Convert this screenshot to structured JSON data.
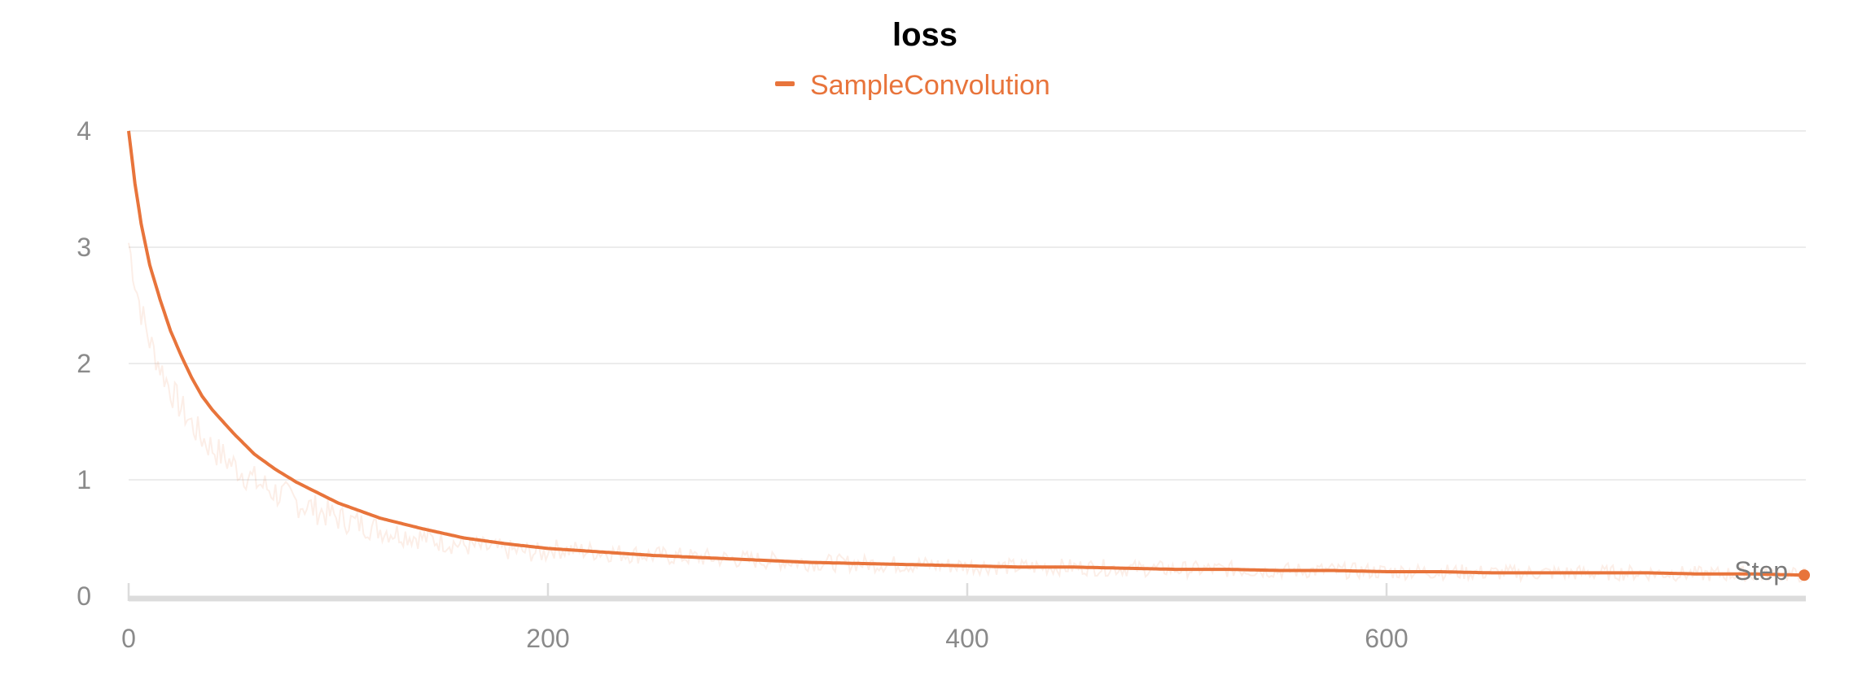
{
  "chart_data": {
    "type": "line",
    "title": "loss",
    "xlabel": "Step",
    "ylabel": "",
    "xlim": [
      0,
      800
    ],
    "ylim": [
      0,
      4
    ],
    "x_ticks": [
      0,
      200,
      400,
      600
    ],
    "y_ticks": [
      0,
      1,
      2,
      3,
      4
    ],
    "grid": "horizontal",
    "legend_position": "top-center",
    "series": [
      {
        "name": "SampleConvolution",
        "color": "#e8743b",
        "smoothed": {
          "x": [
            0,
            3,
            6,
            10,
            15,
            20,
            25,
            30,
            35,
            40,
            50,
            60,
            70,
            80,
            90,
            100,
            120,
            140,
            160,
            180,
            200,
            225,
            250,
            275,
            300,
            325,
            350,
            375,
            400,
            425,
            450,
            475,
            500,
            525,
            550,
            575,
            600,
            625,
            650,
            675,
            700,
            725,
            750,
            775,
            800
          ],
          "y": [
            4.0,
            3.55,
            3.2,
            2.85,
            2.55,
            2.28,
            2.07,
            1.88,
            1.72,
            1.6,
            1.4,
            1.22,
            1.09,
            0.98,
            0.89,
            0.8,
            0.67,
            0.58,
            0.5,
            0.45,
            0.41,
            0.38,
            0.35,
            0.33,
            0.31,
            0.29,
            0.28,
            0.27,
            0.26,
            0.25,
            0.25,
            0.24,
            0.23,
            0.23,
            0.22,
            0.22,
            0.21,
            0.21,
            0.2,
            0.2,
            0.2,
            0.2,
            0.19,
            0.19,
            0.18
          ]
        }
      }
    ]
  }
}
